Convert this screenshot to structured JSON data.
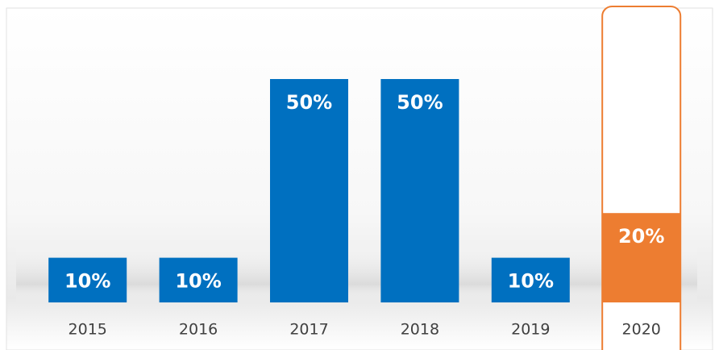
{
  "chart_data": {
    "type": "bar",
    "categories": [
      "2015",
      "2016",
      "2017",
      "2018",
      "2019",
      "2020"
    ],
    "values": [
      10,
      10,
      50,
      50,
      10,
      20
    ],
    "value_labels": [
      "10%",
      "10%",
      "50%",
      "50%",
      "10%",
      "20%"
    ],
    "colors": [
      "#0070c0",
      "#0070c0",
      "#0070c0",
      "#0070c0",
      "#0070c0",
      "#ed7d31"
    ],
    "highlight_color": "#ed7d31"
  }
}
